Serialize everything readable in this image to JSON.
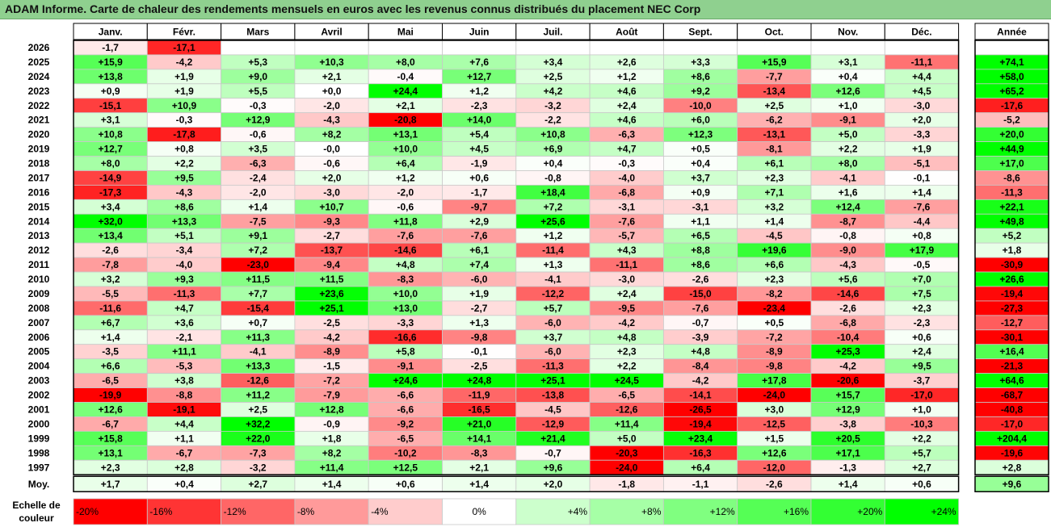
{
  "title": "ADAM Informe. Carte de chaleur des rendements mensuels en euros avec les revenus connus distribués du placement NEC Corp",
  "chart_data": {
    "type": "heatmap",
    "months": [
      "Janv.",
      "Févr.",
      "Mars",
      "Avril",
      "Mai",
      "Juin",
      "Juil.",
      "Août",
      "Sept.",
      "Oct.",
      "Nov.",
      "Déc."
    ],
    "year_header": "Année",
    "rows": [
      {
        "year": "2026",
        "values": [
          "-1,7",
          "-17,1",
          "",
          "",
          "",
          "",
          "",
          "",
          "",
          "",
          "",
          ""
        ],
        "annual": ""
      },
      {
        "year": "2025",
        "values": [
          "+15,9",
          "-4,2",
          "+5,3",
          "+10,3",
          "+8,0",
          "+7,6",
          "+3,4",
          "+2,6",
          "+3,3",
          "+15,9",
          "+3,1",
          "-11,1"
        ],
        "annual": "+74,1"
      },
      {
        "year": "2024",
        "values": [
          "+13,8",
          "+1,9",
          "+9,0",
          "+2,1",
          "-0,4",
          "+12,7",
          "+2,5",
          "+1,2",
          "+8,6",
          "-7,7",
          "+0,4",
          "+4,4"
        ],
        "annual": "+58,0"
      },
      {
        "year": "2023",
        "values": [
          "+0,9",
          "+1,9",
          "+5,5",
          "+0,0",
          "+24,4",
          "+1,2",
          "+4,2",
          "+4,6",
          "+9,2",
          "-13,4",
          "+12,6",
          "+4,5"
        ],
        "annual": "+65,2"
      },
      {
        "year": "2022",
        "values": [
          "-15,1",
          "+10,9",
          "-0,3",
          "-2,0",
          "+2,1",
          "-2,3",
          "-3,2",
          "+2,4",
          "-10,0",
          "+2,5",
          "+1,0",
          "-3,0"
        ],
        "annual": "-17,6"
      },
      {
        "year": "2021",
        "values": [
          "+3,1",
          "-0,3",
          "+12,9",
          "-4,3",
          "-20,8",
          "+14,0",
          "-2,2",
          "+4,6",
          "+6,0",
          "-6,2",
          "-9,1",
          "+2,0"
        ],
        "annual": "-5,2"
      },
      {
        "year": "2020",
        "values": [
          "+10,8",
          "-17,8",
          "-0,6",
          "+8,2",
          "+13,1",
          "+5,4",
          "+10,8",
          "-6,3",
          "+12,3",
          "-13,1",
          "+5,0",
          "-3,3"
        ],
        "annual": "+20,0"
      },
      {
        "year": "2019",
        "values": [
          "+12,7",
          "+0,8",
          "+3,5",
          "-0,0",
          "+10,0",
          "+4,5",
          "+6,9",
          "+4,7",
          "+0,5",
          "-8,1",
          "+2,2",
          "+1,9"
        ],
        "annual": "+44,9"
      },
      {
        "year": "2018",
        "values": [
          "+8,0",
          "+2,2",
          "-6,3",
          "-0,6",
          "+6,4",
          "-1,9",
          "+0,4",
          "-0,3",
          "+0,4",
          "+6,1",
          "+8,0",
          "-5,1"
        ],
        "annual": "+17,0"
      },
      {
        "year": "2017",
        "values": [
          "-14,9",
          "+9,5",
          "-2,4",
          "+2,0",
          "+1,2",
          "+0,6",
          "-0,8",
          "-4,0",
          "+3,7",
          "+2,3",
          "-4,1",
          "-0,1"
        ],
        "annual": "-8,6"
      },
      {
        "year": "2016",
        "values": [
          "-17,3",
          "-4,3",
          "-2,0",
          "-3,0",
          "-2,0",
          "-1,7",
          "+18,4",
          "-6,8",
          "+0,9",
          "+7,1",
          "+1,6",
          "+1,4"
        ],
        "annual": "-11,3"
      },
      {
        "year": "2015",
        "values": [
          "+3,4",
          "+8,6",
          "+1,4",
          "+10,7",
          "-0,6",
          "-9,7",
          "+7,2",
          "-3,1",
          "-3,1",
          "+3,2",
          "+12,4",
          "-7,6"
        ],
        "annual": "+22,1"
      },
      {
        "year": "2014",
        "values": [
          "+32,0",
          "+13,3",
          "-7,5",
          "-9,3",
          "+11,8",
          "+2,9",
          "+25,6",
          "-7,6",
          "+1,1",
          "+1,4",
          "-8,7",
          "-4,4"
        ],
        "annual": "+49,8"
      },
      {
        "year": "2013",
        "values": [
          "+13,4",
          "+5,1",
          "+9,1",
          "-2,7",
          "-7,6",
          "-7,6",
          "+1,2",
          "-5,7",
          "+6,5",
          "-4,5",
          "-0,8",
          "+0,8"
        ],
        "annual": "+5,2"
      },
      {
        "year": "2012",
        "values": [
          "-2,6",
          "-3,4",
          "+7,2",
          "-13,7",
          "-14,6",
          "+6,1",
          "-11,4",
          "+4,3",
          "+8,8",
          "+19,6",
          "-9,0",
          "+17,9"
        ],
        "annual": "+1,8"
      },
      {
        "year": "2011",
        "values": [
          "-7,8",
          "-4,0",
          "-23,0",
          "-9,4",
          "+4,8",
          "+7,4",
          "+1,3",
          "-11,1",
          "+8,6",
          "+6,6",
          "-4,3",
          "-0,5"
        ],
        "annual": "-30,9"
      },
      {
        "year": "2010",
        "values": [
          "+3,2",
          "+9,3",
          "+11,5",
          "+11,5",
          "-8,3",
          "-6,0",
          "-4,1",
          "-3,0",
          "-2,6",
          "+2,3",
          "+5,6",
          "+7,0"
        ],
        "annual": "+26,6"
      },
      {
        "year": "2009",
        "values": [
          "-5,5",
          "-11,3",
          "+7,7",
          "+23,6",
          "+10,0",
          "+1,9",
          "-12,2",
          "+2,4",
          "-15,0",
          "-8,2",
          "-14,6",
          "+7,5"
        ],
        "annual": "-19,4"
      },
      {
        "year": "2008",
        "values": [
          "-11,6",
          "+4,7",
          "-15,4",
          "+25,1",
          "+13,0",
          "-2,7",
          "+5,7",
          "-9,5",
          "-7,6",
          "-23,4",
          "-2,6",
          "+2,3"
        ],
        "annual": "-27,3"
      },
      {
        "year": "2007",
        "values": [
          "+6,7",
          "+3,6",
          "+0,7",
          "-2,5",
          "-3,3",
          "+1,3",
          "-6,0",
          "-4,2",
          "-0,7",
          "+0,5",
          "-6,8",
          "-2,3"
        ],
        "annual": "-12,7"
      },
      {
        "year": "2006",
        "values": [
          "+1,4",
          "-2,1",
          "+11,3",
          "-4,2",
          "-16,6",
          "-9,8",
          "+3,7",
          "+4,8",
          "-3,9",
          "-7,2",
          "-10,4",
          "+0,6"
        ],
        "annual": "-30,1"
      },
      {
        "year": "2005",
        "values": [
          "-3,5",
          "+11,1",
          "-4,1",
          "-8,9",
          "+5,8",
          "-0,1",
          "-6,0",
          "+2,3",
          "+4,8",
          "-8,9",
          "+25,3",
          "+2,4"
        ],
        "annual": "+16,4"
      },
      {
        "year": "2004",
        "values": [
          "+6,6",
          "-5,3",
          "+13,3",
          "-1,5",
          "-9,1",
          "-2,5",
          "-11,3",
          "+2,2",
          "-8,4",
          "-9,8",
          "-4,2",
          "+9,5"
        ],
        "annual": "-21,3"
      },
      {
        "year": "2003",
        "values": [
          "-6,5",
          "+3,8",
          "-12,6",
          "-7,2",
          "+24,6",
          "+24,8",
          "+25,1",
          "+24,5",
          "-4,2",
          "+17,8",
          "-20,6",
          "-3,7"
        ],
        "annual": "+64,6"
      },
      {
        "year": "2002",
        "values": [
          "-19,9",
          "-8,8",
          "+11,2",
          "-7,9",
          "-6,6",
          "-11,9",
          "-13,8",
          "-6,5",
          "-14,1",
          "-24,0",
          "+15,7",
          "-17,0"
        ],
        "annual": "-68,7"
      },
      {
        "year": "2001",
        "values": [
          "+12,6",
          "-19,1",
          "+2,5",
          "+12,8",
          "-6,6",
          "-16,5",
          "-4,5",
          "-12,6",
          "-26,5",
          "+3,0",
          "+12,9",
          "+1,0"
        ],
        "annual": "-40,8"
      },
      {
        "year": "2000",
        "values": [
          "-6,7",
          "+4,4",
          "+32,2",
          "-0,9",
          "-9,2",
          "+21,0",
          "-12,9",
          "+11,4",
          "-19,4",
          "-12,5",
          "-3,8",
          "-10,3"
        ],
        "annual": "-17,0"
      },
      {
        "year": "1999",
        "values": [
          "+15,8",
          "+1,1",
          "+22,0",
          "+1,8",
          "-6,5",
          "+14,1",
          "+21,4",
          "+5,0",
          "+23,4",
          "+1,5",
          "+20,5",
          "+2,2"
        ],
        "annual": "+204,4"
      },
      {
        "year": "1998",
        "values": [
          "+13,1",
          "-6,7",
          "-7,3",
          "+8,2",
          "-10,2",
          "-8,3",
          "-0,7",
          "-20,3",
          "-16,3",
          "+12,6",
          "+17,1",
          "+5,7"
        ],
        "annual": "-19,6"
      },
      {
        "year": "1997",
        "values": [
          "+2,3",
          "+2,8",
          "-3,2",
          "+11,4",
          "+12,5",
          "+2,1",
          "+9,6",
          "-24,0",
          "+6,4",
          "-12,0",
          "-1,3",
          "+2,7"
        ],
        "annual": "+2,8"
      }
    ],
    "average": {
      "label": "Moy.",
      "values": [
        "+1,7",
        "+0,4",
        "+2,7",
        "+1,4",
        "+0,6",
        "+1,4",
        "+2,0",
        "-1,8",
        "-1,1",
        "-2,6",
        "+1,4",
        "+0,6"
      ],
      "annual": "+9,6"
    },
    "color_scale": {
      "label_line1": "Echelle de",
      "label_line2": "couleur",
      "steps": [
        {
          "label": "-20%",
          "value": -20,
          "color": "#ff0000"
        },
        {
          "label": "-16%",
          "value": -16,
          "color": "#ff3434"
        },
        {
          "label": "-12%",
          "value": -12,
          "color": "#ff6666"
        },
        {
          "label": "-8%",
          "value": -8,
          "color": "#ff9a9a"
        },
        {
          "label": "-4%",
          "value": -4,
          "color": "#ffcccc"
        },
        {
          "label": "0%",
          "value": 0,
          "color": "#ffffff"
        },
        {
          "label": "+4%",
          "value": 4,
          "color": "#ccffcc"
        },
        {
          "label": "+8%",
          "value": 8,
          "color": "#a6ffa6"
        },
        {
          "label": "+12%",
          "value": 12,
          "color": "#80ff80"
        },
        {
          "label": "+16%",
          "value": 16,
          "color": "#55ff55"
        },
        {
          "label": "+20%",
          "value": 20,
          "color": "#33ff33"
        },
        {
          "label": "+24%",
          "value": 24,
          "color": "#00ff00"
        }
      ]
    }
  }
}
